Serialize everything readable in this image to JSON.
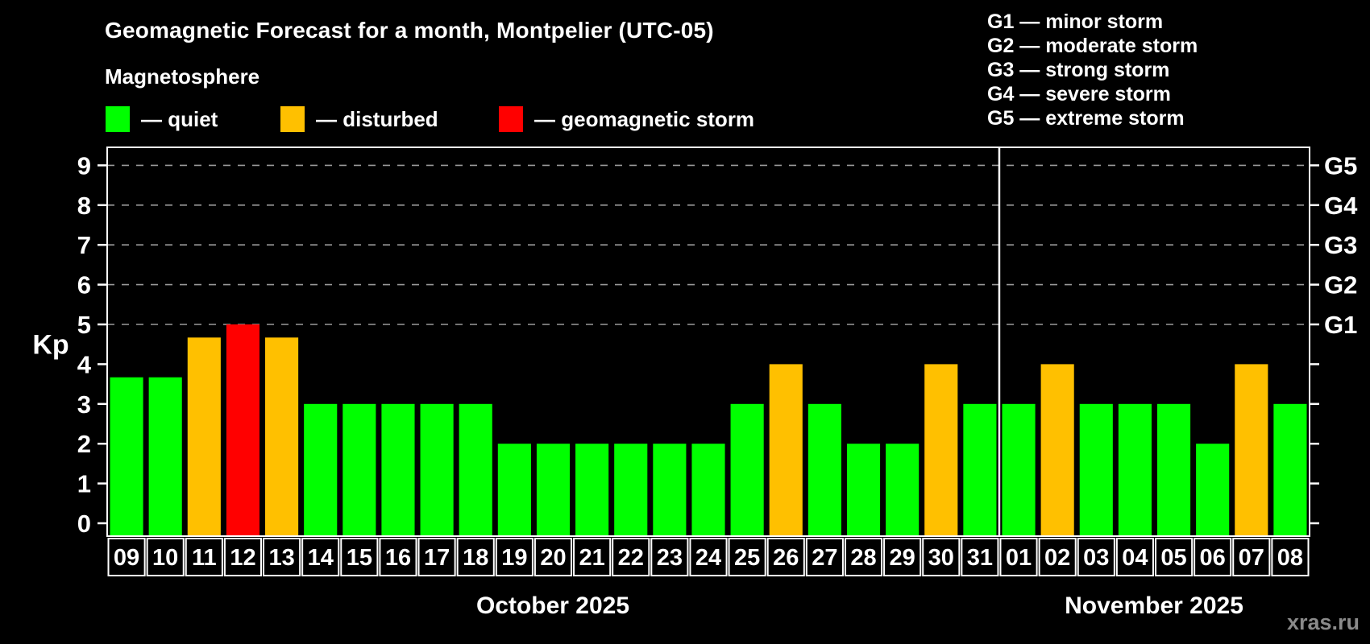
{
  "title": "Geomagnetic Forecast for a month, Montpelier (UTC-05)",
  "subtitle": "Magnetosphere",
  "legend": {
    "items": [
      {
        "id": "quiet",
        "label": "— quiet",
        "color": "#00ff00"
      },
      {
        "id": "disturbed",
        "label": "— disturbed",
        "color": "#ffc000"
      },
      {
        "id": "storm",
        "label": "— geomagnetic storm",
        "color": "#ff0000"
      }
    ]
  },
  "g_legend": {
    "lines": [
      "G1 — minor storm",
      "G2 — moderate storm",
      "G3 — strong storm",
      "G4 — severe storm",
      "G5 — extreme storm"
    ]
  },
  "watermark": "xras.ru",
  "chart_data": {
    "type": "bar",
    "title": "Geomagnetic Forecast for a month, Montpelier (UTC-05)",
    "ylabel": "Kp",
    "ylim": [
      0,
      9
    ],
    "yticks": [
      0,
      1,
      2,
      3,
      4,
      5,
      6,
      7,
      8,
      9
    ],
    "grid": "dashed horizontal lines at Kp 5-9 only",
    "grid_kp_levels": [
      5,
      6,
      7,
      8,
      9
    ],
    "right_axis_labels": [
      {
        "kp": 5,
        "label": "G1"
      },
      {
        "kp": 6,
        "label": "G2"
      },
      {
        "kp": 7,
        "label": "G3"
      },
      {
        "kp": 8,
        "label": "G4"
      },
      {
        "kp": 9,
        "label": "G5"
      }
    ],
    "months": [
      {
        "label": "October 2025",
        "start_index": 0,
        "count": 23
      },
      {
        "label": "November 2025",
        "start_index": 23,
        "count": 8
      }
    ],
    "categories": [
      "09",
      "10",
      "11",
      "12",
      "13",
      "14",
      "15",
      "16",
      "17",
      "18",
      "19",
      "20",
      "21",
      "22",
      "23",
      "24",
      "25",
      "26",
      "27",
      "28",
      "29",
      "30",
      "31",
      "01",
      "02",
      "03",
      "04",
      "05",
      "06",
      "07",
      "08"
    ],
    "values": [
      3.67,
      3.67,
      4.67,
      5,
      4.67,
      3,
      3,
      3,
      3,
      3,
      2,
      2,
      2,
      2,
      2,
      2,
      3,
      4,
      3,
      2,
      2,
      4,
      3,
      3,
      4,
      3,
      3,
      3,
      2,
      4,
      3
    ],
    "statuses": [
      "quiet",
      "quiet",
      "disturbed",
      "storm",
      "disturbed",
      "quiet",
      "quiet",
      "quiet",
      "quiet",
      "quiet",
      "quiet",
      "quiet",
      "quiet",
      "quiet",
      "quiet",
      "quiet",
      "quiet",
      "disturbed",
      "quiet",
      "quiet",
      "quiet",
      "disturbed",
      "quiet",
      "quiet",
      "disturbed",
      "quiet",
      "quiet",
      "quiet",
      "quiet",
      "disturbed",
      "quiet"
    ],
    "colors": {
      "quiet": "#00ff00",
      "disturbed": "#ffc000",
      "storm": "#ff0000"
    },
    "legend_position": "top-left",
    "background": "#000000",
    "axis_color": "#ffffff",
    "gridline_color": "#9a9a9a"
  }
}
